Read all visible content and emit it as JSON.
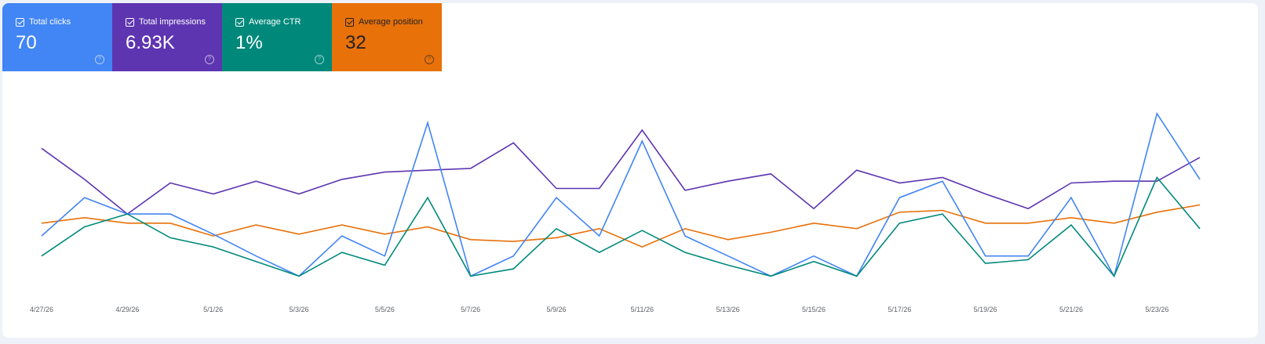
{
  "metrics": [
    {
      "label": "Total clicks",
      "value": "70",
      "color": "#4285f4",
      "text_color": "#ffffff",
      "help_icon": "question-icon"
    },
    {
      "label": "Total impressions",
      "value": "6.93K",
      "color": "#5e35b1",
      "text_color": "#ffffff",
      "help_icon": "question-icon"
    },
    {
      "label": "Average CTR",
      "value": "1%",
      "color": "#00897b",
      "text_color": "#ffffff",
      "help_icon": "question-icon"
    },
    {
      "label": "Average position",
      "value": "32",
      "color": "#e8710a",
      "text_color": "#202124",
      "help_icon": "question-icon"
    }
  ],
  "chart_data": {
    "type": "line",
    "x": [
      "4/27/26",
      "4/28/26",
      "4/29/26",
      "4/30/26",
      "5/1/26",
      "5/2/26",
      "5/3/26",
      "5/4/26",
      "5/5/26",
      "5/6/26",
      "5/7/26",
      "5/8/26",
      "5/9/26",
      "5/10/26",
      "5/11/26",
      "5/12/26",
      "5/13/26",
      "5/14/26",
      "5/15/26",
      "5/16/26",
      "5/17/26",
      "5/18/26",
      "5/19/26",
      "5/20/26",
      "5/21/26",
      "5/22/26",
      "5/23/26",
      "5/24/26"
    ],
    "x_tick_labels": [
      "4/27/26",
      "4/29/26",
      "5/1/26",
      "5/3/26",
      "5/5/26",
      "5/7/26",
      "5/9/26",
      "5/11/26",
      "5/13/26",
      "5/15/26",
      "5/17/26",
      "5/19/26",
      "5/21/26",
      "5/23/26"
    ],
    "ylim": [
      0,
      100
    ],
    "grid": false,
    "series": [
      {
        "color": "#5e35b1",
        "values": [
          81,
          64,
          45,
          62,
          56,
          63,
          56,
          64,
          68,
          69,
          70,
          84,
          59,
          59,
          91,
          58,
          63,
          67,
          48,
          69,
          62,
          65,
          56,
          48,
          62,
          63,
          63,
          76
        ]
      },
      {
        "color": "#e8710a",
        "values": [
          40,
          43,
          40,
          40,
          33,
          39,
          34,
          39,
          34,
          38,
          31,
          30,
          32,
          37,
          27,
          37,
          31,
          35,
          40,
          37,
          46,
          47,
          40,
          40,
          43,
          40,
          46,
          50
        ]
      },
      {
        "color": "#4285f4",
        "values": [
          33,
          54,
          45,
          45,
          34,
          22,
          11,
          33,
          22,
          95,
          11,
          22,
          54,
          33,
          85,
          33,
          22,
          11,
          22,
          11,
          54,
          63,
          22,
          22,
          54,
          11,
          100,
          64
        ]
      },
      {
        "color": "#00897b",
        "values": [
          22,
          38,
          45,
          32,
          27,
          19,
          11,
          24,
          17,
          54,
          11,
          15,
          37,
          24,
          36,
          24,
          17,
          11,
          19,
          11,
          40,
          45,
          18,
          20,
          39,
          11,
          65,
          37
        ]
      }
    ]
  }
}
